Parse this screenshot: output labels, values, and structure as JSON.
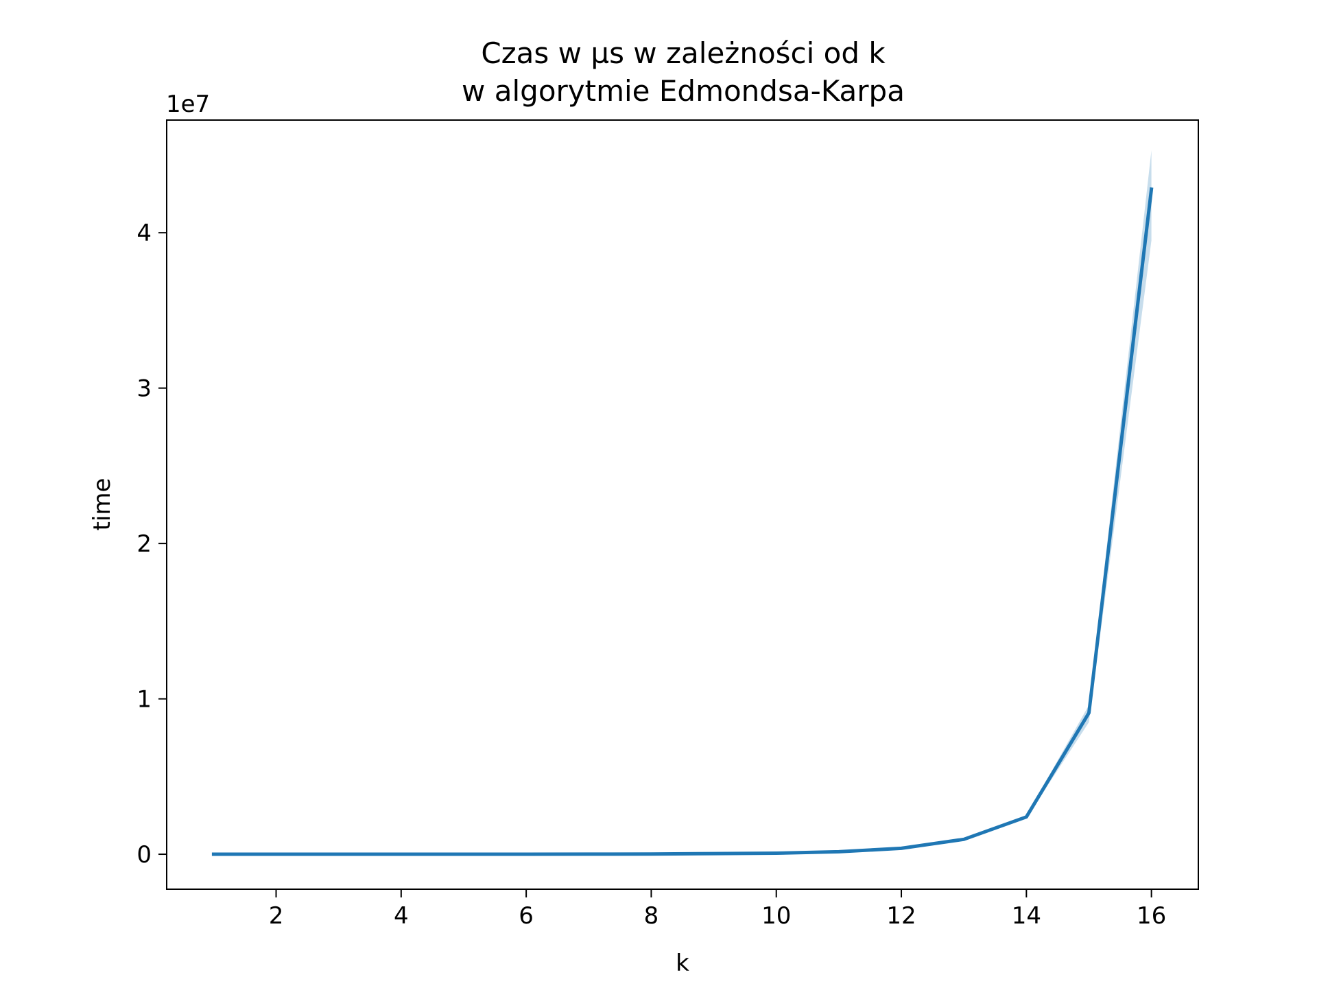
{
  "chart_data": {
    "type": "line",
    "title": "Czas w µs w zależności od k\nw algorytmie Edmondsa-Karpa",
    "title_lines": [
      "Czas w µs w zależności od k",
      "w algorytmie Edmondsa-Karpa"
    ],
    "xlabel": "k",
    "ylabel": "time",
    "y_offset_label": "1e7",
    "xlim": [
      0.25,
      16.75
    ],
    "ylim": [
      -2250000,
      47250000
    ],
    "x_ticks": [
      2,
      4,
      6,
      8,
      10,
      12,
      14,
      16
    ],
    "x_tick_labels": [
      "2",
      "4",
      "6",
      "8",
      "10",
      "12",
      "14",
      "16"
    ],
    "y_ticks": [
      0,
      10000000,
      20000000,
      30000000,
      40000000
    ],
    "y_tick_labels": [
      "0",
      "1",
      "2",
      "3",
      "4"
    ],
    "grid": false,
    "colors": {
      "line": "#1f77b4",
      "band": "#1f77b4"
    },
    "series": [
      {
        "x": [
          1,
          2,
          3,
          4,
          5,
          6,
          7,
          8,
          9,
          10,
          11,
          12,
          13,
          14,
          15,
          16
        ],
        "values": [
          0,
          0,
          0,
          0,
          0,
          0,
          5000,
          15000,
          40000,
          70000,
          160000,
          380000,
          960000,
          2400000,
          9100000,
          42800000
        ],
        "band_lower": [
          0,
          0,
          0,
          0,
          0,
          0,
          5000,
          15000,
          38000,
          65000,
          150000,
          360000,
          930000,
          2330000,
          8500000,
          39500000
        ],
        "band_upper": [
          0,
          0,
          0,
          0,
          0,
          0,
          5000,
          15000,
          42000,
          75000,
          170000,
          400000,
          990000,
          2470000,
          9600000,
          45300000
        ]
      }
    ]
  }
}
